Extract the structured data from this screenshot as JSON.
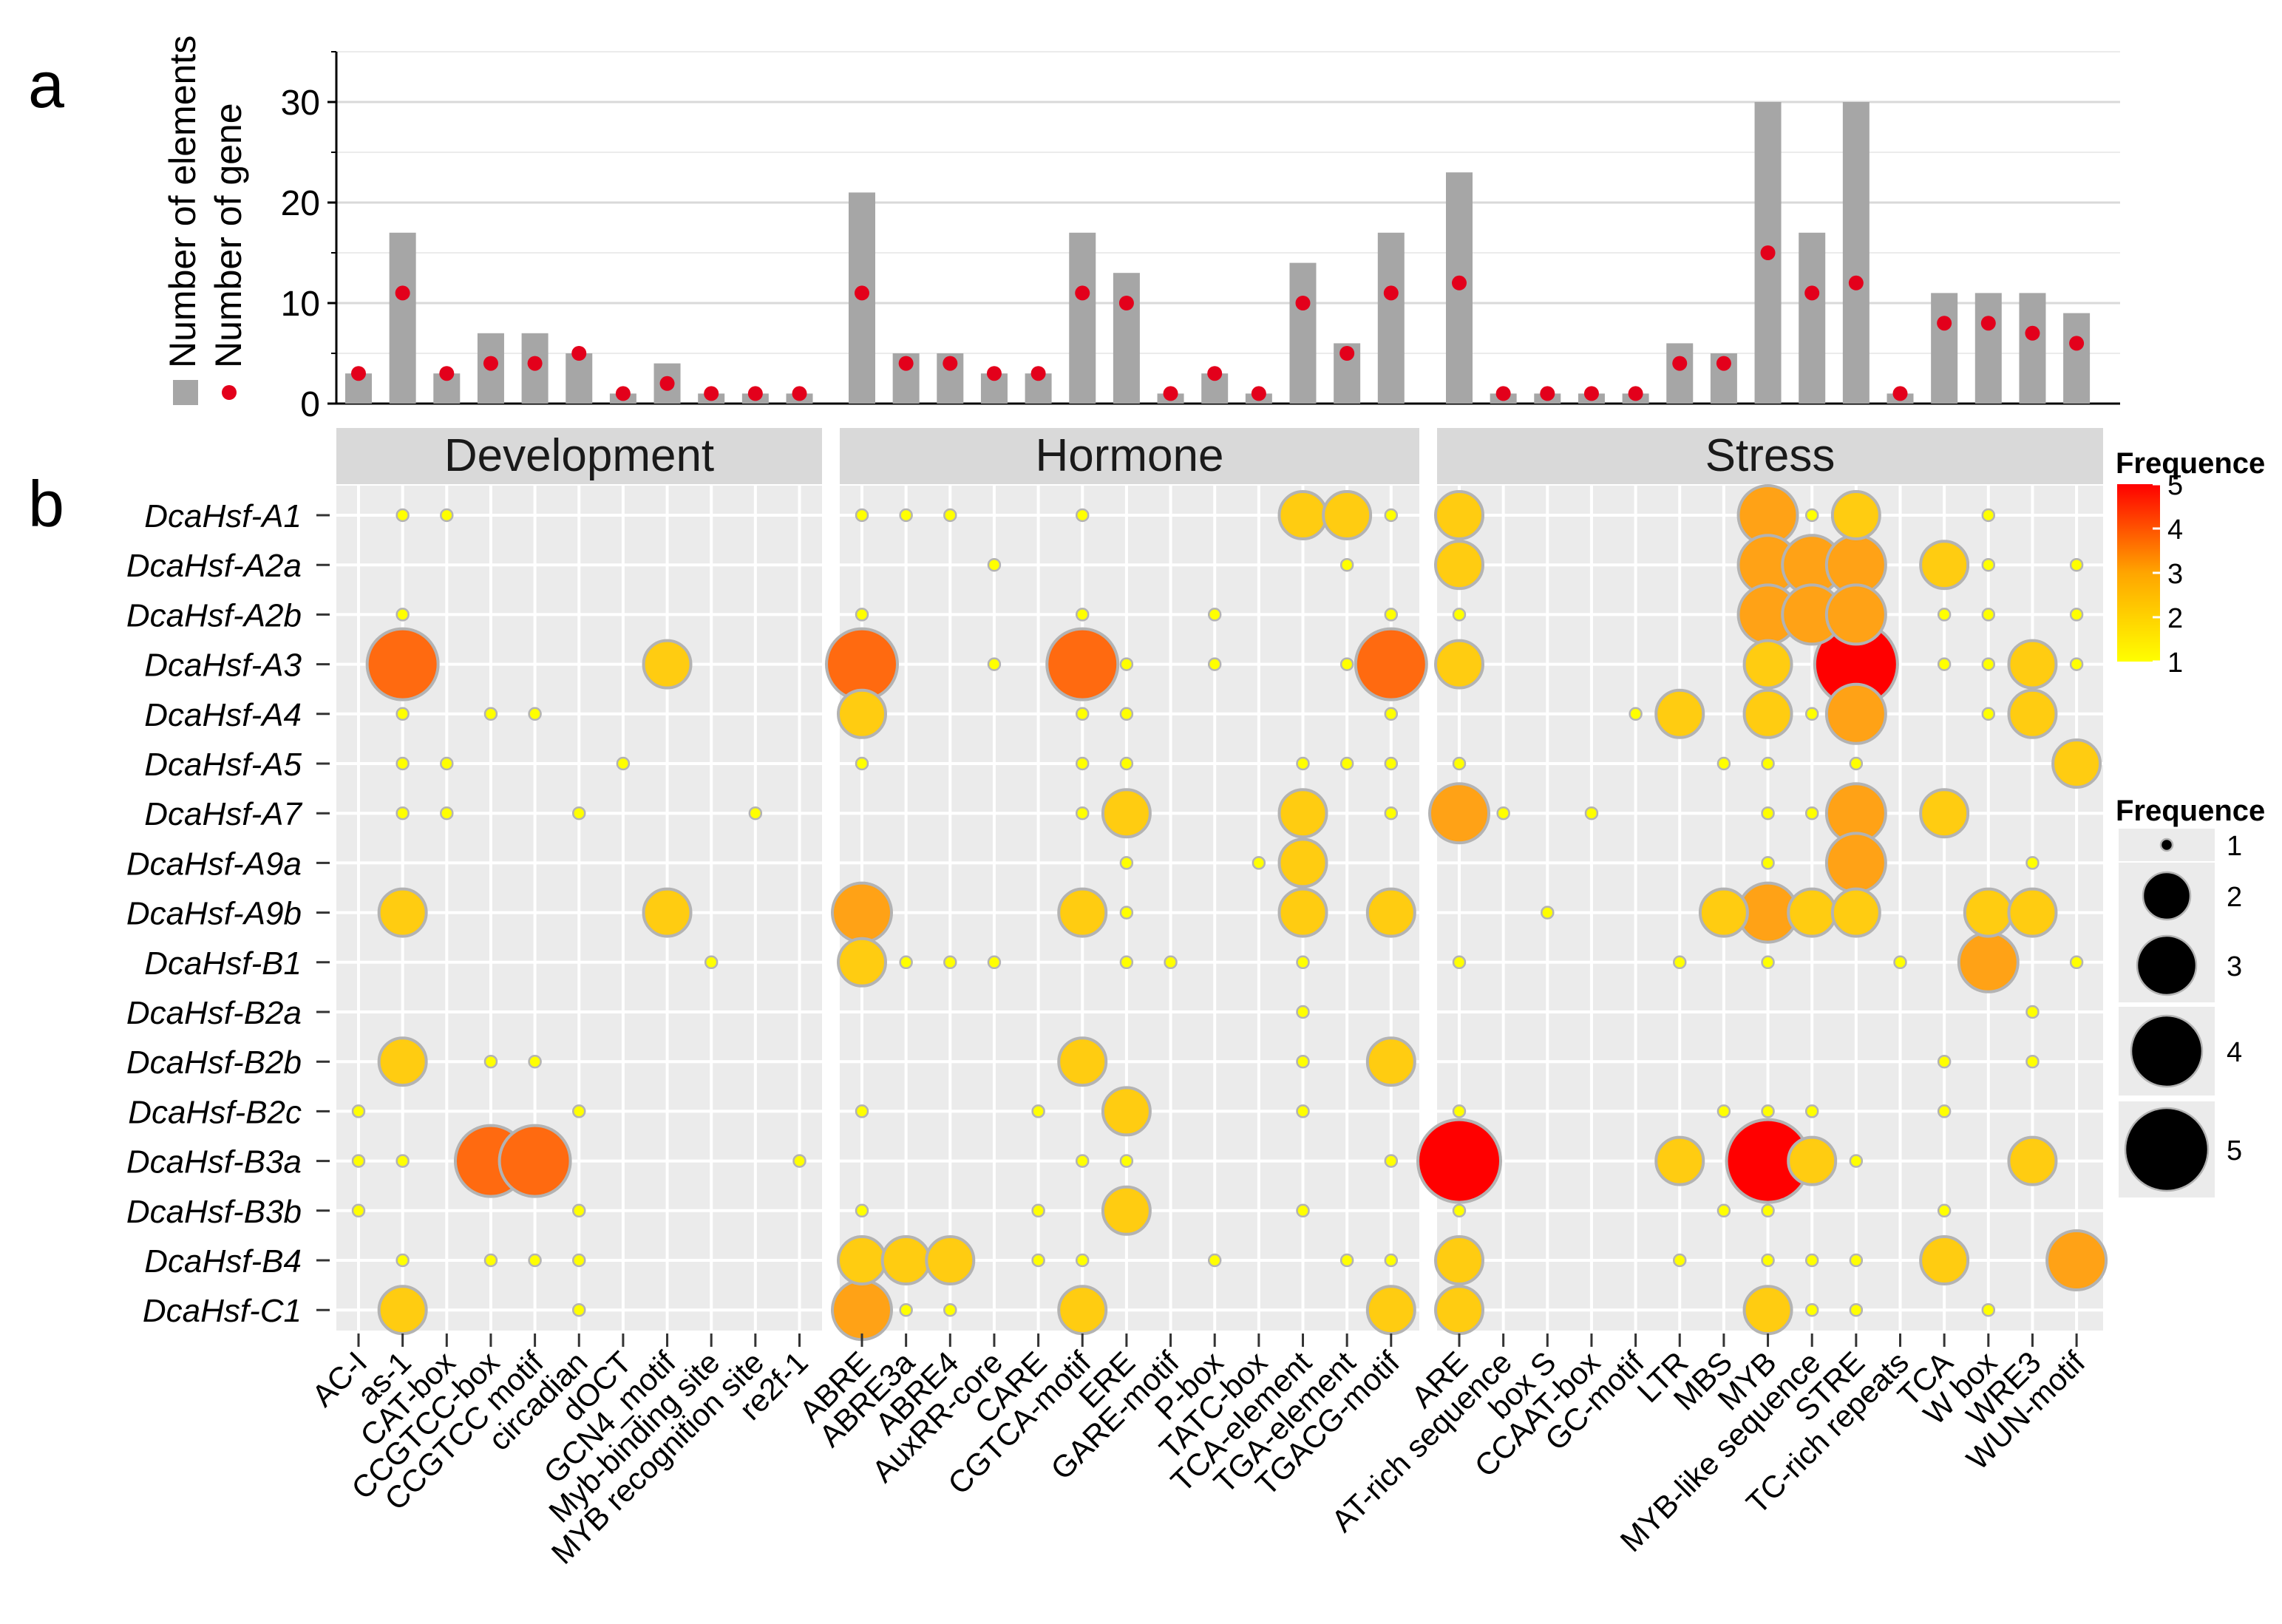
{
  "panel_labels": {
    "a": "a",
    "b": "b"
  },
  "chart_data": [
    {
      "type": "bar",
      "panel": "a",
      "title": "",
      "xlabel": "",
      "ylabel": "",
      "ylim": [
        0,
        35
      ],
      "y_ticks": [
        0,
        10,
        20,
        30
      ],
      "legend": {
        "placement": "left-vertical",
        "entries": [
          {
            "name": "Number of elements",
            "color": "#a6a6a6",
            "marker": "square"
          },
          {
            "name": "Number of gene",
            "color": "#e3001b",
            "marker": "point"
          }
        ]
      },
      "categories": [
        "AC-I",
        "as-1",
        "CAT-box",
        "CCGTCC-box",
        "CCGTCC motif",
        "circadian",
        "dOCT",
        "GCN4_motif",
        "Myb-binding site",
        "MYB recognition site",
        "re2f-1",
        "ABRE",
        "ABRE3a",
        "ABRE4",
        "AuxRR-core",
        "CARE",
        "CGTCA-motif",
        "ERE",
        "GARE-motif",
        "P-box",
        "TATC-box",
        "TCA-element",
        "TGA-element",
        "TGACG-motif",
        "ARE",
        "AT-rich sequence",
        "box S",
        "CCAAT-box",
        "GC-motif",
        "LTR",
        "MBS",
        "MYB",
        "MYB-like sequence",
        "STRE",
        "TC-rich repeats",
        "TCA",
        "W box",
        "WRE3",
        "WUN-motif"
      ],
      "series": [
        {
          "name": "Number of elements",
          "values": [
            3,
            17,
            3,
            7,
            7,
            5,
            1,
            4,
            1,
            1,
            1,
            21,
            5,
            5,
            3,
            3,
            17,
            13,
            1,
            3,
            1,
            14,
            6,
            17,
            23,
            1,
            1,
            1,
            1,
            6,
            5,
            30,
            17,
            30,
            1,
            11,
            11,
            11,
            9
          ]
        },
        {
          "name": "Number of gene",
          "values": [
            3,
            11,
            3,
            4,
            4,
            5,
            1,
            2,
            1,
            1,
            1,
            11,
            4,
            4,
            3,
            3,
            11,
            10,
            1,
            3,
            1,
            10,
            5,
            11,
            12,
            1,
            1,
            1,
            1,
            4,
            4,
            15,
            11,
            12,
            1,
            8,
            8,
            7,
            6
          ]
        }
      ]
    },
    {
      "type": "heatmap",
      "panel": "b",
      "subtype": "bubble",
      "facets": [
        "Development",
        "Hormone",
        "Stress"
      ],
      "facet_columns": [
        [
          "AC-I",
          "as-1",
          "CAT-box",
          "CCGTCC-box",
          "CCGTCC motif",
          "circadian",
          "dOCT",
          "GCN4_motif",
          "Myb-binding site",
          "MYB recognition site",
          "re2f-1"
        ],
        [
          "ABRE",
          "ABRE3a",
          "ABRE4",
          "AuxRR-core",
          "CARE",
          "CGTCA-motif",
          "ERE",
          "GARE-motif",
          "P-box",
          "TATC-box",
          "TCA-element",
          "TGA-element",
          "TGACG-motif"
        ],
        [
          "ARE",
          "AT-rich sequence",
          "box S",
          "CCAAT-box",
          "GC-motif",
          "LTR",
          "MBS",
          "MYB",
          "MYB-like sequence",
          "STRE",
          "TC-rich repeats",
          "TCA",
          "W box",
          "WRE3",
          "WUN-motif"
        ]
      ],
      "rows": [
        "DcaHsf-A1",
        "DcaHsf-A2a",
        "DcaHsf-A2b",
        "DcaHsf-A3",
        "DcaHsf-A4",
        "DcaHsf-A5",
        "DcaHsf-A7",
        "DcaHsf-A9a",
        "DcaHsf-A9b",
        "DcaHsf-B1",
        "DcaHsf-B2a",
        "DcaHsf-B2b",
        "DcaHsf-B2c",
        "DcaHsf-B3a",
        "DcaHsf-B3b",
        "DcaHsf-B4",
        "DcaHsf-C1"
      ],
      "values": [
        [
          0,
          1,
          1,
          0,
          0,
          0,
          0,
          0,
          0,
          0,
          0,
          1,
          1,
          1,
          0,
          0,
          1,
          0,
          0,
          0,
          0,
          2,
          2,
          1,
          2,
          0,
          0,
          0,
          0,
          0,
          0,
          3,
          1,
          2,
          0,
          0,
          1,
          0,
          0
        ],
        [
          0,
          0,
          0,
          0,
          0,
          0,
          0,
          0,
          0,
          0,
          0,
          0,
          0,
          0,
          1,
          0,
          0,
          0,
          0,
          0,
          0,
          0,
          1,
          0,
          2,
          0,
          0,
          0,
          0,
          0,
          0,
          3,
          3,
          3,
          0,
          2,
          1,
          0,
          1
        ],
        [
          0,
          1,
          0,
          0,
          0,
          0,
          0,
          0,
          0,
          0,
          0,
          1,
          0,
          0,
          0,
          0,
          1,
          0,
          0,
          1,
          0,
          0,
          0,
          1,
          1,
          0,
          0,
          0,
          0,
          0,
          0,
          3,
          3,
          3,
          0,
          1,
          1,
          0,
          1
        ],
        [
          0,
          4,
          0,
          0,
          0,
          0,
          0,
          2,
          0,
          0,
          0,
          4,
          0,
          0,
          1,
          0,
          4,
          1,
          0,
          1,
          0,
          0,
          1,
          4,
          2,
          0,
          0,
          0,
          0,
          0,
          0,
          2,
          0,
          5,
          0,
          1,
          1,
          2,
          1
        ],
        [
          0,
          1,
          0,
          1,
          1,
          0,
          0,
          0,
          0,
          0,
          0,
          2,
          0,
          0,
          0,
          0,
          1,
          1,
          0,
          0,
          0,
          0,
          0,
          1,
          0,
          0,
          0,
          0,
          1,
          2,
          0,
          2,
          1,
          3,
          0,
          0,
          1,
          2,
          0
        ],
        [
          0,
          1,
          1,
          0,
          0,
          0,
          1,
          0,
          0,
          0,
          0,
          1,
          0,
          0,
          0,
          0,
          1,
          1,
          0,
          0,
          0,
          1,
          1,
          1,
          1,
          0,
          0,
          0,
          0,
          0,
          1,
          1,
          0,
          1,
          0,
          0,
          0,
          0,
          2
        ],
        [
          0,
          1,
          1,
          0,
          0,
          1,
          0,
          0,
          0,
          1,
          0,
          0,
          0,
          0,
          0,
          0,
          1,
          2,
          0,
          0,
          0,
          2,
          0,
          1,
          3,
          1,
          0,
          1,
          0,
          0,
          0,
          1,
          1,
          3,
          0,
          2,
          0,
          0,
          0
        ],
        [
          0,
          0,
          0,
          0,
          0,
          0,
          0,
          0,
          0,
          0,
          0,
          0,
          0,
          0,
          0,
          0,
          0,
          1,
          0,
          0,
          1,
          2,
          0,
          0,
          0,
          0,
          0,
          0,
          0,
          0,
          0,
          1,
          0,
          3,
          0,
          0,
          0,
          1,
          0
        ],
        [
          0,
          2,
          0,
          0,
          0,
          0,
          0,
          2,
          0,
          0,
          0,
          3,
          0,
          0,
          0,
          0,
          2,
          1,
          0,
          0,
          0,
          2,
          0,
          2,
          0,
          0,
          1,
          0,
          0,
          0,
          2,
          3,
          2,
          2,
          0,
          0,
          2,
          2,
          0
        ],
        [
          0,
          0,
          0,
          0,
          0,
          0,
          0,
          0,
          1,
          0,
          0,
          2,
          1,
          1,
          1,
          0,
          0,
          1,
          1,
          0,
          0,
          1,
          0,
          0,
          1,
          0,
          0,
          0,
          0,
          1,
          0,
          1,
          0,
          0,
          1,
          0,
          3,
          0,
          1
        ],
        [
          0,
          0,
          0,
          0,
          0,
          0,
          0,
          0,
          0,
          0,
          0,
          0,
          0,
          0,
          0,
          0,
          0,
          0,
          0,
          0,
          0,
          1,
          0,
          0,
          0,
          0,
          0,
          0,
          0,
          0,
          0,
          0,
          0,
          0,
          0,
          0,
          0,
          1,
          0
        ],
        [
          0,
          2,
          0,
          1,
          1,
          0,
          0,
          0,
          0,
          0,
          0,
          0,
          0,
          0,
          0,
          0,
          2,
          0,
          0,
          0,
          0,
          1,
          0,
          2,
          0,
          0,
          0,
          0,
          0,
          0,
          0,
          0,
          0,
          0,
          0,
          1,
          0,
          1,
          0
        ],
        [
          1,
          0,
          0,
          0,
          0,
          1,
          0,
          0,
          0,
          0,
          0,
          1,
          0,
          0,
          0,
          1,
          0,
          2,
          0,
          0,
          0,
          1,
          0,
          0,
          1,
          0,
          0,
          0,
          0,
          0,
          1,
          1,
          1,
          0,
          0,
          1,
          0,
          0,
          0
        ],
        [
          1,
          1,
          0,
          4,
          4,
          0,
          0,
          0,
          0,
          0,
          1,
          0,
          0,
          0,
          0,
          0,
          1,
          1,
          0,
          0,
          0,
          0,
          0,
          1,
          5,
          0,
          0,
          0,
          0,
          2,
          0,
          5,
          2,
          1,
          0,
          0,
          0,
          2,
          0
        ],
        [
          1,
          0,
          0,
          0,
          0,
          1,
          0,
          0,
          0,
          0,
          0,
          1,
          0,
          0,
          0,
          1,
          0,
          2,
          0,
          0,
          0,
          1,
          0,
          0,
          1,
          0,
          0,
          0,
          0,
          0,
          1,
          1,
          0,
          0,
          0,
          1,
          0,
          0,
          0
        ],
        [
          0,
          1,
          0,
          1,
          1,
          1,
          0,
          0,
          0,
          0,
          0,
          2,
          2,
          2,
          0,
          1,
          1,
          0,
          0,
          1,
          0,
          0,
          1,
          1,
          2,
          0,
          0,
          0,
          0,
          1,
          0,
          1,
          1,
          1,
          0,
          2,
          0,
          0,
          3
        ],
        [
          0,
          2,
          0,
          0,
          0,
          1,
          0,
          0,
          0,
          0,
          0,
          3,
          1,
          1,
          0,
          0,
          2,
          0,
          0,
          0,
          0,
          0,
          0,
          2,
          2,
          0,
          0,
          0,
          0,
          0,
          0,
          2,
          1,
          1,
          0,
          0,
          1,
          0,
          0
        ]
      ],
      "color_legend": {
        "title": "Frequence",
        "min": 1,
        "max": 5,
        "ticks": [
          1,
          2,
          3,
          4,
          5
        ],
        "colors": [
          "#ffff00",
          "#ffa500",
          "#ff0000"
        ]
      },
      "size_legend": {
        "title": "Frequence",
        "values": [
          1,
          2,
          3,
          4,
          5
        ]
      }
    }
  ]
}
